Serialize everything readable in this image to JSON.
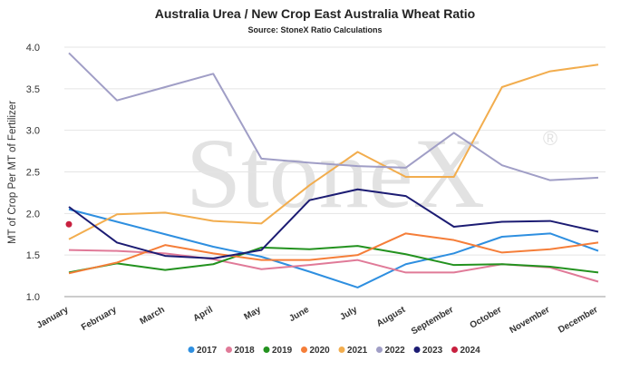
{
  "chart_data": {
    "type": "line",
    "title": "Australia Urea / New Crop East Australia Wheat Ratio",
    "subtitle": "Source: StoneX Ratio Calculations",
    "watermark": "StoneX",
    "watermark_mark": "®",
    "ylabel": "MT of Crop Per MT of Fertilizer",
    "xlabel": "",
    "ylim": [
      1.0,
      4.0
    ],
    "yticks": [
      "1.0",
      "1.5",
      "2.0",
      "2.5",
      "3.0",
      "3.5",
      "4.0"
    ],
    "grid": true,
    "legend_position": "bottom",
    "categories": [
      "January",
      "February",
      "March",
      "April",
      "May",
      "June",
      "July",
      "August",
      "September",
      "October",
      "November",
      "December"
    ],
    "series": [
      {
        "name": "2017",
        "color": "#2E8FE0",
        "values": [
          2.05,
          1.9,
          1.75,
          1.6,
          1.48,
          1.3,
          1.11,
          1.39,
          1.52,
          1.72,
          1.76,
          1.55
        ]
      },
      {
        "name": "2018",
        "color": "#E07A98",
        "values": [
          1.56,
          1.55,
          1.52,
          1.45,
          1.33,
          1.38,
          1.44,
          1.29,
          1.29,
          1.39,
          1.35,
          1.18
        ]
      },
      {
        "name": "2019",
        "color": "#23921F",
        "values": [
          1.29,
          1.4,
          1.32,
          1.39,
          1.59,
          1.57,
          1.61,
          1.51,
          1.38,
          1.39,
          1.36,
          1.29
        ]
      },
      {
        "name": "2020",
        "color": "#F57E39",
        "values": [
          1.28,
          1.41,
          1.62,
          1.52,
          1.44,
          1.44,
          1.5,
          1.76,
          1.68,
          1.53,
          1.57,
          1.65
        ]
      },
      {
        "name": "2021",
        "color": "#F2AD4E",
        "values": [
          1.69,
          1.99,
          2.01,
          1.91,
          1.88,
          2.34,
          2.74,
          2.44,
          2.44,
          3.52,
          3.71,
          3.79
        ]
      },
      {
        "name": "2022",
        "color": "#A09EC6",
        "values": [
          3.93,
          3.36,
          3.52,
          3.68,
          2.66,
          2.61,
          2.57,
          2.55,
          2.97,
          2.58,
          2.4,
          2.43
        ]
      },
      {
        "name": "2023",
        "color": "#1C1C73",
        "values": [
          2.08,
          1.65,
          1.49,
          1.46,
          1.56,
          2.16,
          2.29,
          2.21,
          1.84,
          1.9,
          1.91,
          1.78
        ]
      },
      {
        "name": "2024",
        "color": "#C8203F",
        "values": [
          1.87,
          null,
          null,
          null,
          null,
          null,
          null,
          null,
          null,
          null,
          null,
          null
        ]
      }
    ]
  }
}
